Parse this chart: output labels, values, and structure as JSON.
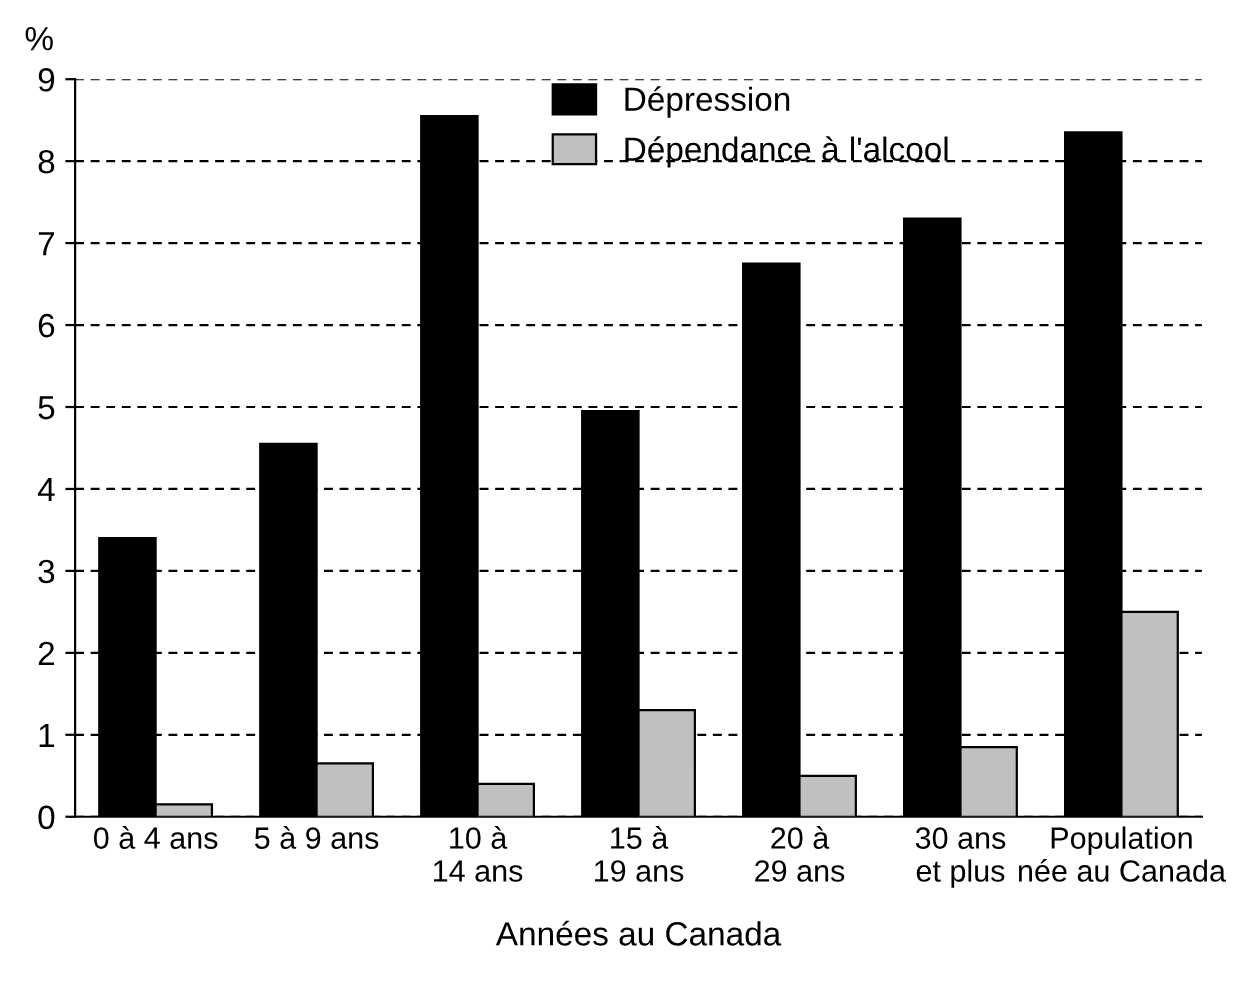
{
  "chart_data": {
    "type": "bar",
    "ylabel": "%",
    "xlabel": "Années au Canada",
    "categories": [
      "0 à 4 ans",
      "5 à 9 ans",
      "10 à\n14 ans",
      "15 à\n19 ans",
      "20 à\n29 ans",
      "30 ans\net plus",
      "Population\nnée au Canada"
    ],
    "series": [
      {
        "name": "Dépression",
        "color": "#000000",
        "values": [
          3.4,
          4.55,
          8.55,
          4.95,
          6.75,
          7.3,
          8.35
        ]
      },
      {
        "name": "Dépendance à l'alcool",
        "color": "#c0c0c0",
        "values": [
          0.15,
          0.65,
          0.4,
          1.3,
          0.5,
          0.85,
          2.5
        ]
      }
    ],
    "ylim": [
      0,
      9
    ],
    "yticks": [
      0,
      1,
      2,
      3,
      4,
      5,
      6,
      7,
      8,
      9
    ],
    "grid": "y",
    "line_style": "dashed",
    "legend": "top"
  }
}
